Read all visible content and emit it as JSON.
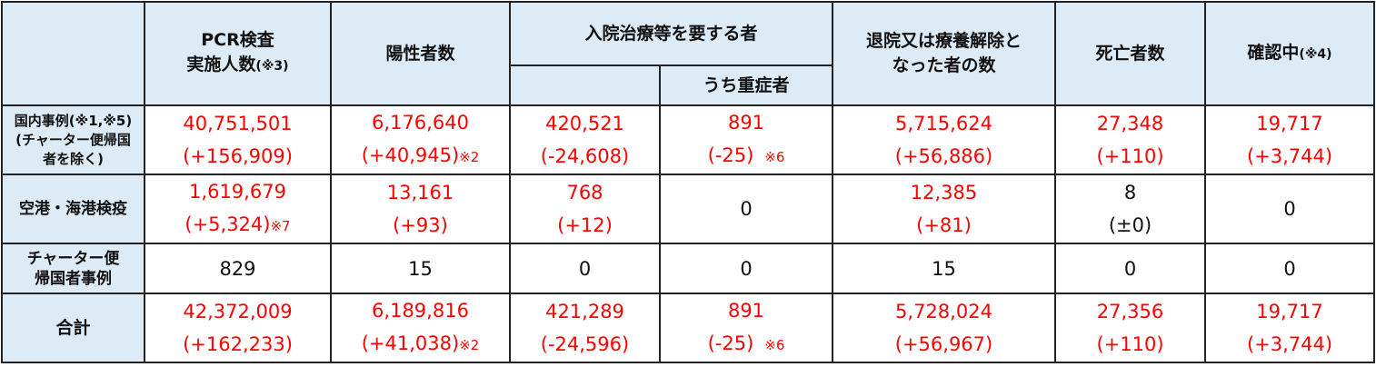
{
  "headers": {
    "pcr_line1": "PCR検査",
    "pcr_line2": "実施人数",
    "pcr_note": "(※3)",
    "positive": "陽性者数",
    "hospital": "入院治療等を要する者",
    "severe": "うち重症者",
    "discharged_line1": "退院又は療養解除と",
    "discharged_line2": "なった者の数",
    "deaths": "死亡者数",
    "confirming": "確認中",
    "confirming_note": "(※4)"
  },
  "rows": [
    {
      "label1": "国内事例(※1,※5)",
      "label2": "(チャーター便帰国",
      "label3": "者を除く)",
      "cells": [
        {
          "value": "40,751,501",
          "delta": "(+156,909)",
          "note": ""
        },
        {
          "value": "6,176,640",
          "delta": "(+40,945)",
          "note": "※2"
        },
        {
          "value": "420,521",
          "delta": "(-24,608)",
          "note": ""
        },
        {
          "value": "891",
          "delta": "(-25)",
          "note": "※6"
        },
        {
          "value": "5,715,624",
          "delta": "(+56,886)",
          "note": ""
        },
        {
          "value": "27,348",
          "delta": "(+110)",
          "note": ""
        },
        {
          "value": "19,717",
          "delta": "(+3,744)",
          "note": ""
        }
      ]
    },
    {
      "label1": "空港・海港検疫",
      "cells": [
        {
          "value": "1,619,679",
          "delta": "(+5,324)",
          "note": "※7"
        },
        {
          "value": "13,161",
          "delta": "(+93)",
          "note": ""
        },
        {
          "value": "768",
          "delta": "(+12)",
          "note": ""
        },
        {
          "value": "0",
          "black": true
        },
        {
          "value": "12,385",
          "delta": "(+81)",
          "note": ""
        },
        {
          "value": "8",
          "delta": "(±0)",
          "note": "",
          "black": true
        },
        {
          "value": "0",
          "black": true
        }
      ]
    },
    {
      "label1": "チャーター便",
      "label2": "帰国者事例",
      "cells": [
        {
          "value": "829",
          "black": true
        },
        {
          "value": "15",
          "black": true
        },
        {
          "value": "0",
          "black": true
        },
        {
          "value": "0",
          "black": true
        },
        {
          "value": "15",
          "black": true
        },
        {
          "value": "0",
          "black": true
        },
        {
          "value": "0",
          "black": true
        }
      ]
    },
    {
      "label1": "合計",
      "cells": [
        {
          "value": "42,372,009",
          "delta": "(+162,233)",
          "note": ""
        },
        {
          "value": "6,189,816",
          "delta": "(+41,038)",
          "note": "※2"
        },
        {
          "value": "421,289",
          "delta": "(-24,596)",
          "note": ""
        },
        {
          "value": "891",
          "delta": "(-25)",
          "note": "※6"
        },
        {
          "value": "5,728,024",
          "delta": "(+56,967)",
          "note": ""
        },
        {
          "value": "27,356",
          "delta": "(+110)",
          "note": ""
        },
        {
          "value": "19,717",
          "delta": "(+3,744)",
          "note": ""
        }
      ]
    }
  ],
  "colors": {
    "header_bg": "#ddebf7",
    "value_red": "#ff0000",
    "border": "#222222"
  }
}
